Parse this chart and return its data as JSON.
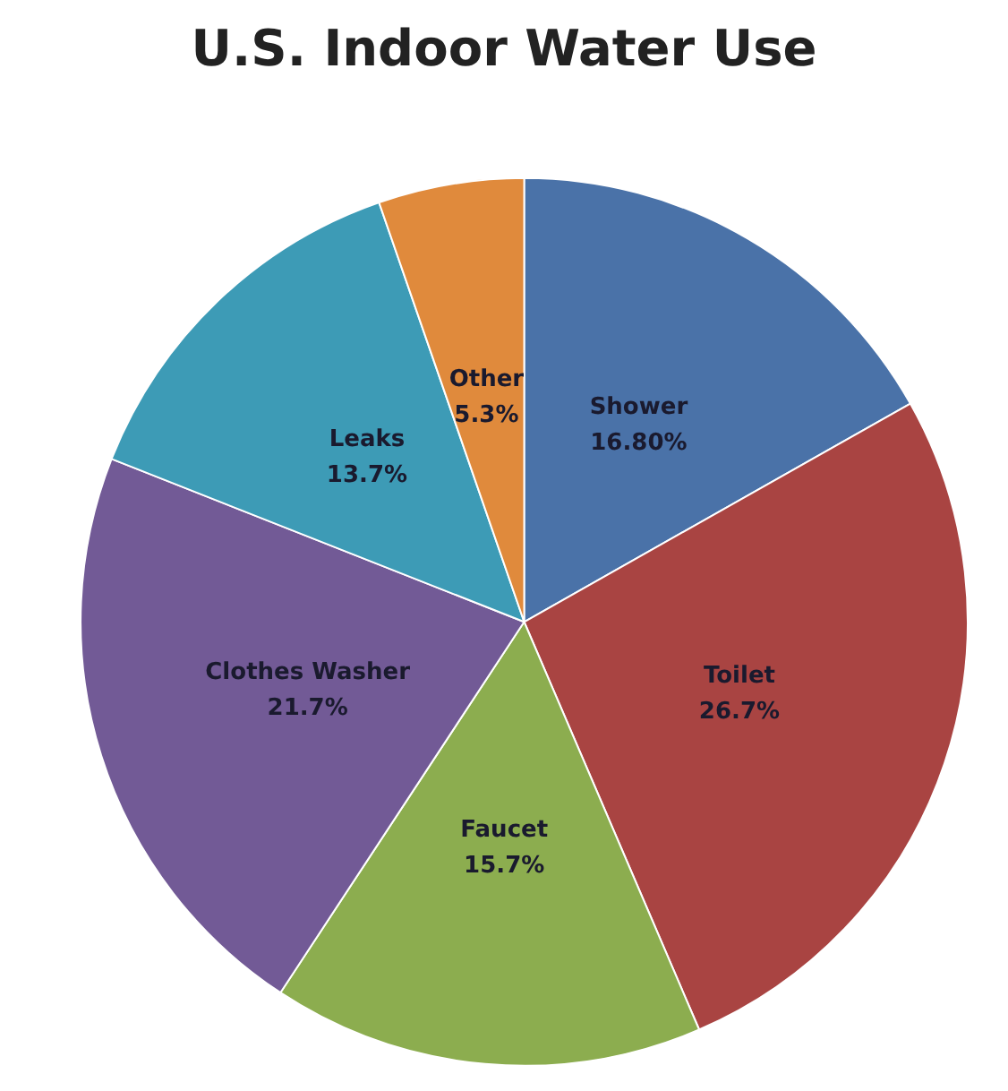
{
  "chart_data": {
    "type": "pie",
    "title": "U.S. Indoor Water Use",
    "categories": [
      "Shower",
      "Toilet",
      "Faucet",
      "Clothes Washer",
      "Leaks",
      "Other"
    ],
    "values": [
      16.8,
      26.7,
      15.7,
      21.7,
      13.7,
      5.3
    ],
    "value_labels": [
      "16.80%",
      "26.7%",
      "15.7%",
      "21.7%",
      "13.7%",
      "5.3%"
    ],
    "colors": [
      "#4a72a8",
      "#a94442",
      "#8cad4f",
      "#725a96",
      "#3d9bb6",
      "#e08a3c"
    ],
    "legend": false
  }
}
